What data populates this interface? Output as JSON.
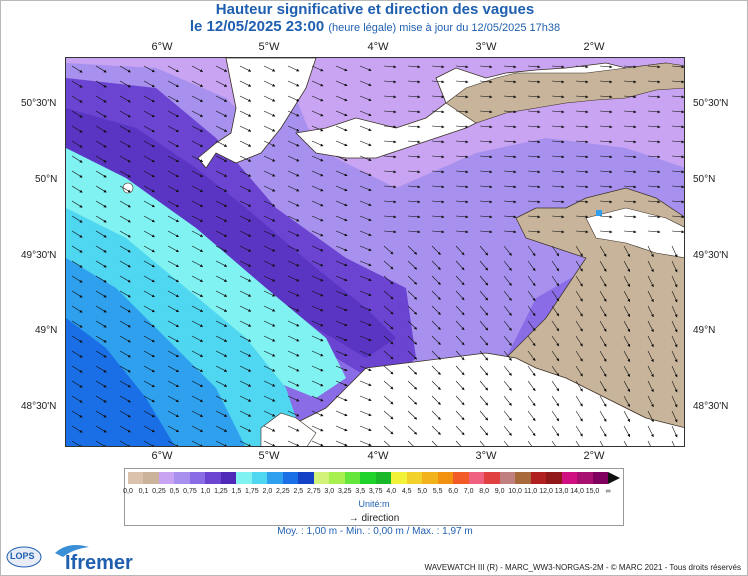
{
  "header": {
    "title": "Hauteur significative et direction des vagues",
    "date": "le 12/05/2025 23:00",
    "update": "(heure légale) mise à jour du 12/05/2025 17h38"
  },
  "map": {
    "lon_labels": [
      "6°W",
      "5°W",
      "4°W",
      "3°W",
      "2°W"
    ],
    "lat_labels": [
      "50°30'N",
      "50°N",
      "49°30'N",
      "49°N",
      "48°30'N"
    ],
    "land_color": "#c8b49a",
    "coast_color": "#3a2f25"
  },
  "legend": {
    "labels": [
      "0,0",
      "0,1",
      "0,25",
      "0,5",
      "0,75",
      "1,0",
      "1,25",
      "1,5",
      "1,75",
      "2,0",
      "2,25",
      "2,5",
      "2,75",
      "3,0",
      "3,25",
      "3,5",
      "3,75",
      "4,0",
      "4,5",
      "5,0",
      "5,5",
      "6,0",
      "7,0",
      "8,0",
      "9,0",
      "10,0",
      "11,0",
      "12,0",
      "13,0",
      "14,0",
      "15,0",
      "∞"
    ],
    "colors": [
      "#d9c3ad",
      "#cbb39b",
      "#c9a4f2",
      "#a891ee",
      "#8a6de6",
      "#6b44d2",
      "#4f29b8",
      "#80f2f2",
      "#4fd6f0",
      "#2fa0ee",
      "#1b6fe6",
      "#1440c8",
      "#d2f27a",
      "#a8f050",
      "#64e63c",
      "#20d22c",
      "#18b82a",
      "#f2f238",
      "#f2d22a",
      "#f2b21c",
      "#f2900f",
      "#f25a28",
      "#f06080",
      "#e04040",
      "#c08080",
      "#a86a3a",
      "#b02020",
      "#901818",
      "#d01080",
      "#a81070",
      "#800060"
    ],
    "unit": "Unité:m",
    "direction_label": "direction"
  },
  "stats": "Moy. : 1,00 m   -   Min. : 0,00 m / Max. : 1,97 m",
  "footer": {
    "lops": "LOPS",
    "ifremer": "Ifremer",
    "credit": "WAVEWATCH III (R) - MARC_WW3-NORGAS-2M - © MARC 2021 - Tous droits réservés"
  }
}
